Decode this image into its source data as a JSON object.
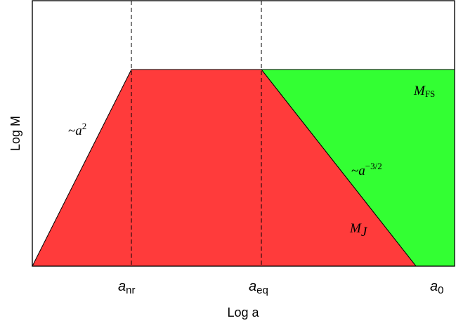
{
  "chart_data": {
    "type": "area",
    "xlabel": "Log a",
    "ylabel": "Log M",
    "grid": false,
    "x_ticks": [
      {
        "base": "a",
        "sub": "nr"
      },
      {
        "base": "a",
        "sub": "eq"
      },
      {
        "base": "a",
        "sub": "0"
      }
    ],
    "regions": [
      {
        "name": "M_J",
        "color": "#ff3b3b",
        "main": "M",
        "sub": "J"
      },
      {
        "name": "M_FS",
        "color": "#33ff33",
        "main": "M",
        "sub": "FS"
      }
    ],
    "annotations": [
      {
        "prefix": "~",
        "base": "a",
        "sup": "2"
      },
      {
        "prefix": "~",
        "base": "a",
        "sup": "−3/2"
      }
    ],
    "colors": {
      "mj": "#ff3b3b",
      "mfs": "#33ff33"
    }
  }
}
